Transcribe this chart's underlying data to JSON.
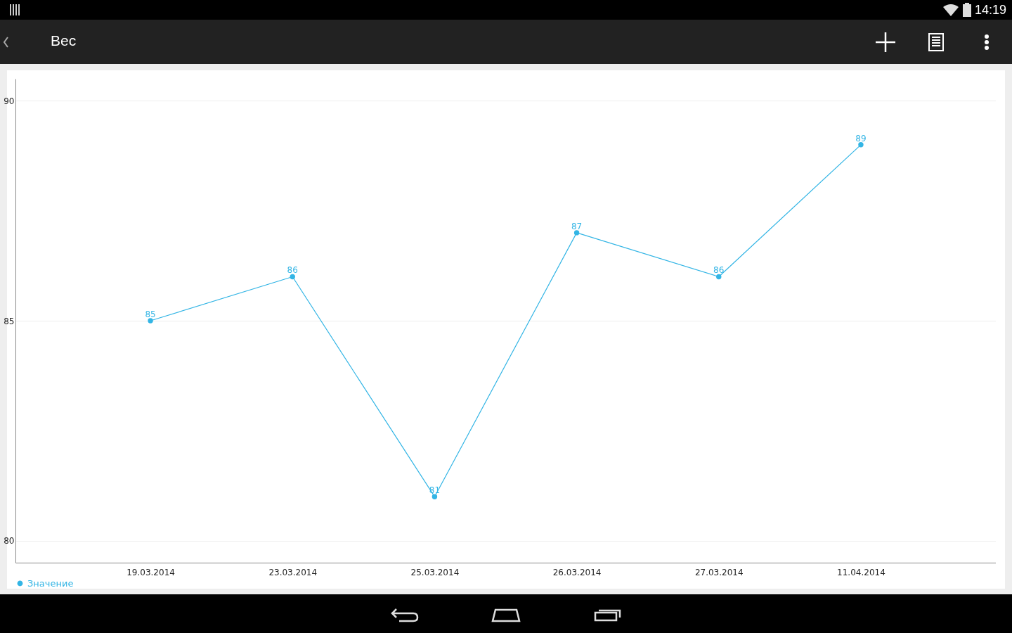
{
  "chart_data": {
    "type": "line",
    "title": "Вес",
    "categories": [
      "19.03.2014",
      "23.03.2014",
      "25.03.2014",
      "26.03.2014",
      "27.03.2014",
      "11.04.2014"
    ],
    "series": [
      {
        "name": "Значение",
        "color": "#33b5e5",
        "values": [
          85,
          86,
          81,
          87,
          86,
          89
        ]
      }
    ],
    "ylim": [
      79.5,
      90.5
    ],
    "yticks": [
      {
        "value": 80,
        "label": "80"
      },
      {
        "value": 85,
        "label": "85"
      },
      {
        "value": 90,
        "label": "90"
      }
    ],
    "grid": "y",
    "legend": "bottom left",
    "marker": "circle",
    "line_style": "solid",
    "data_labels": true,
    "annotations": [
      "14:19"
    ]
  }
}
